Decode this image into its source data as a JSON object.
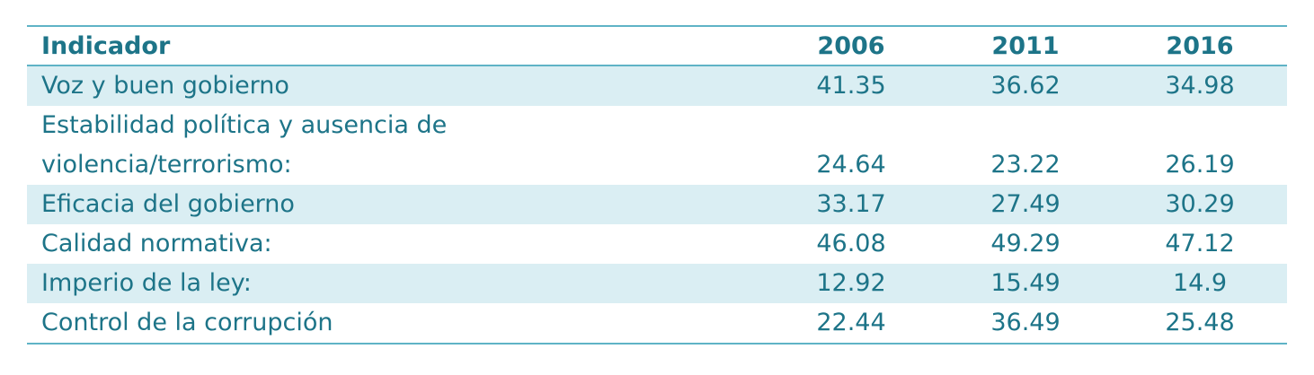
{
  "table": {
    "columns": [
      "Indicador",
      "2006",
      "2011",
      "2016"
    ],
    "rows": [
      [
        "Voz y buen gobierno",
        41.35,
        36.62,
        34.98
      ],
      [
        "Estabilidad política y ausencia de violencia/terrorismo:",
        24.64,
        23.22,
        26.19
      ],
      [
        "Eficacia del gobierno",
        33.17,
        27.49,
        30.29
      ],
      [
        "Calidad normativa:",
        46.08,
        49.29,
        47.12
      ],
      [
        "Imperio de la ley:",
        12.92,
        15.49,
        14.9
      ],
      [
        "Control de la corrupción",
        22.44,
        36.49,
        25.48
      ]
    ]
  }
}
